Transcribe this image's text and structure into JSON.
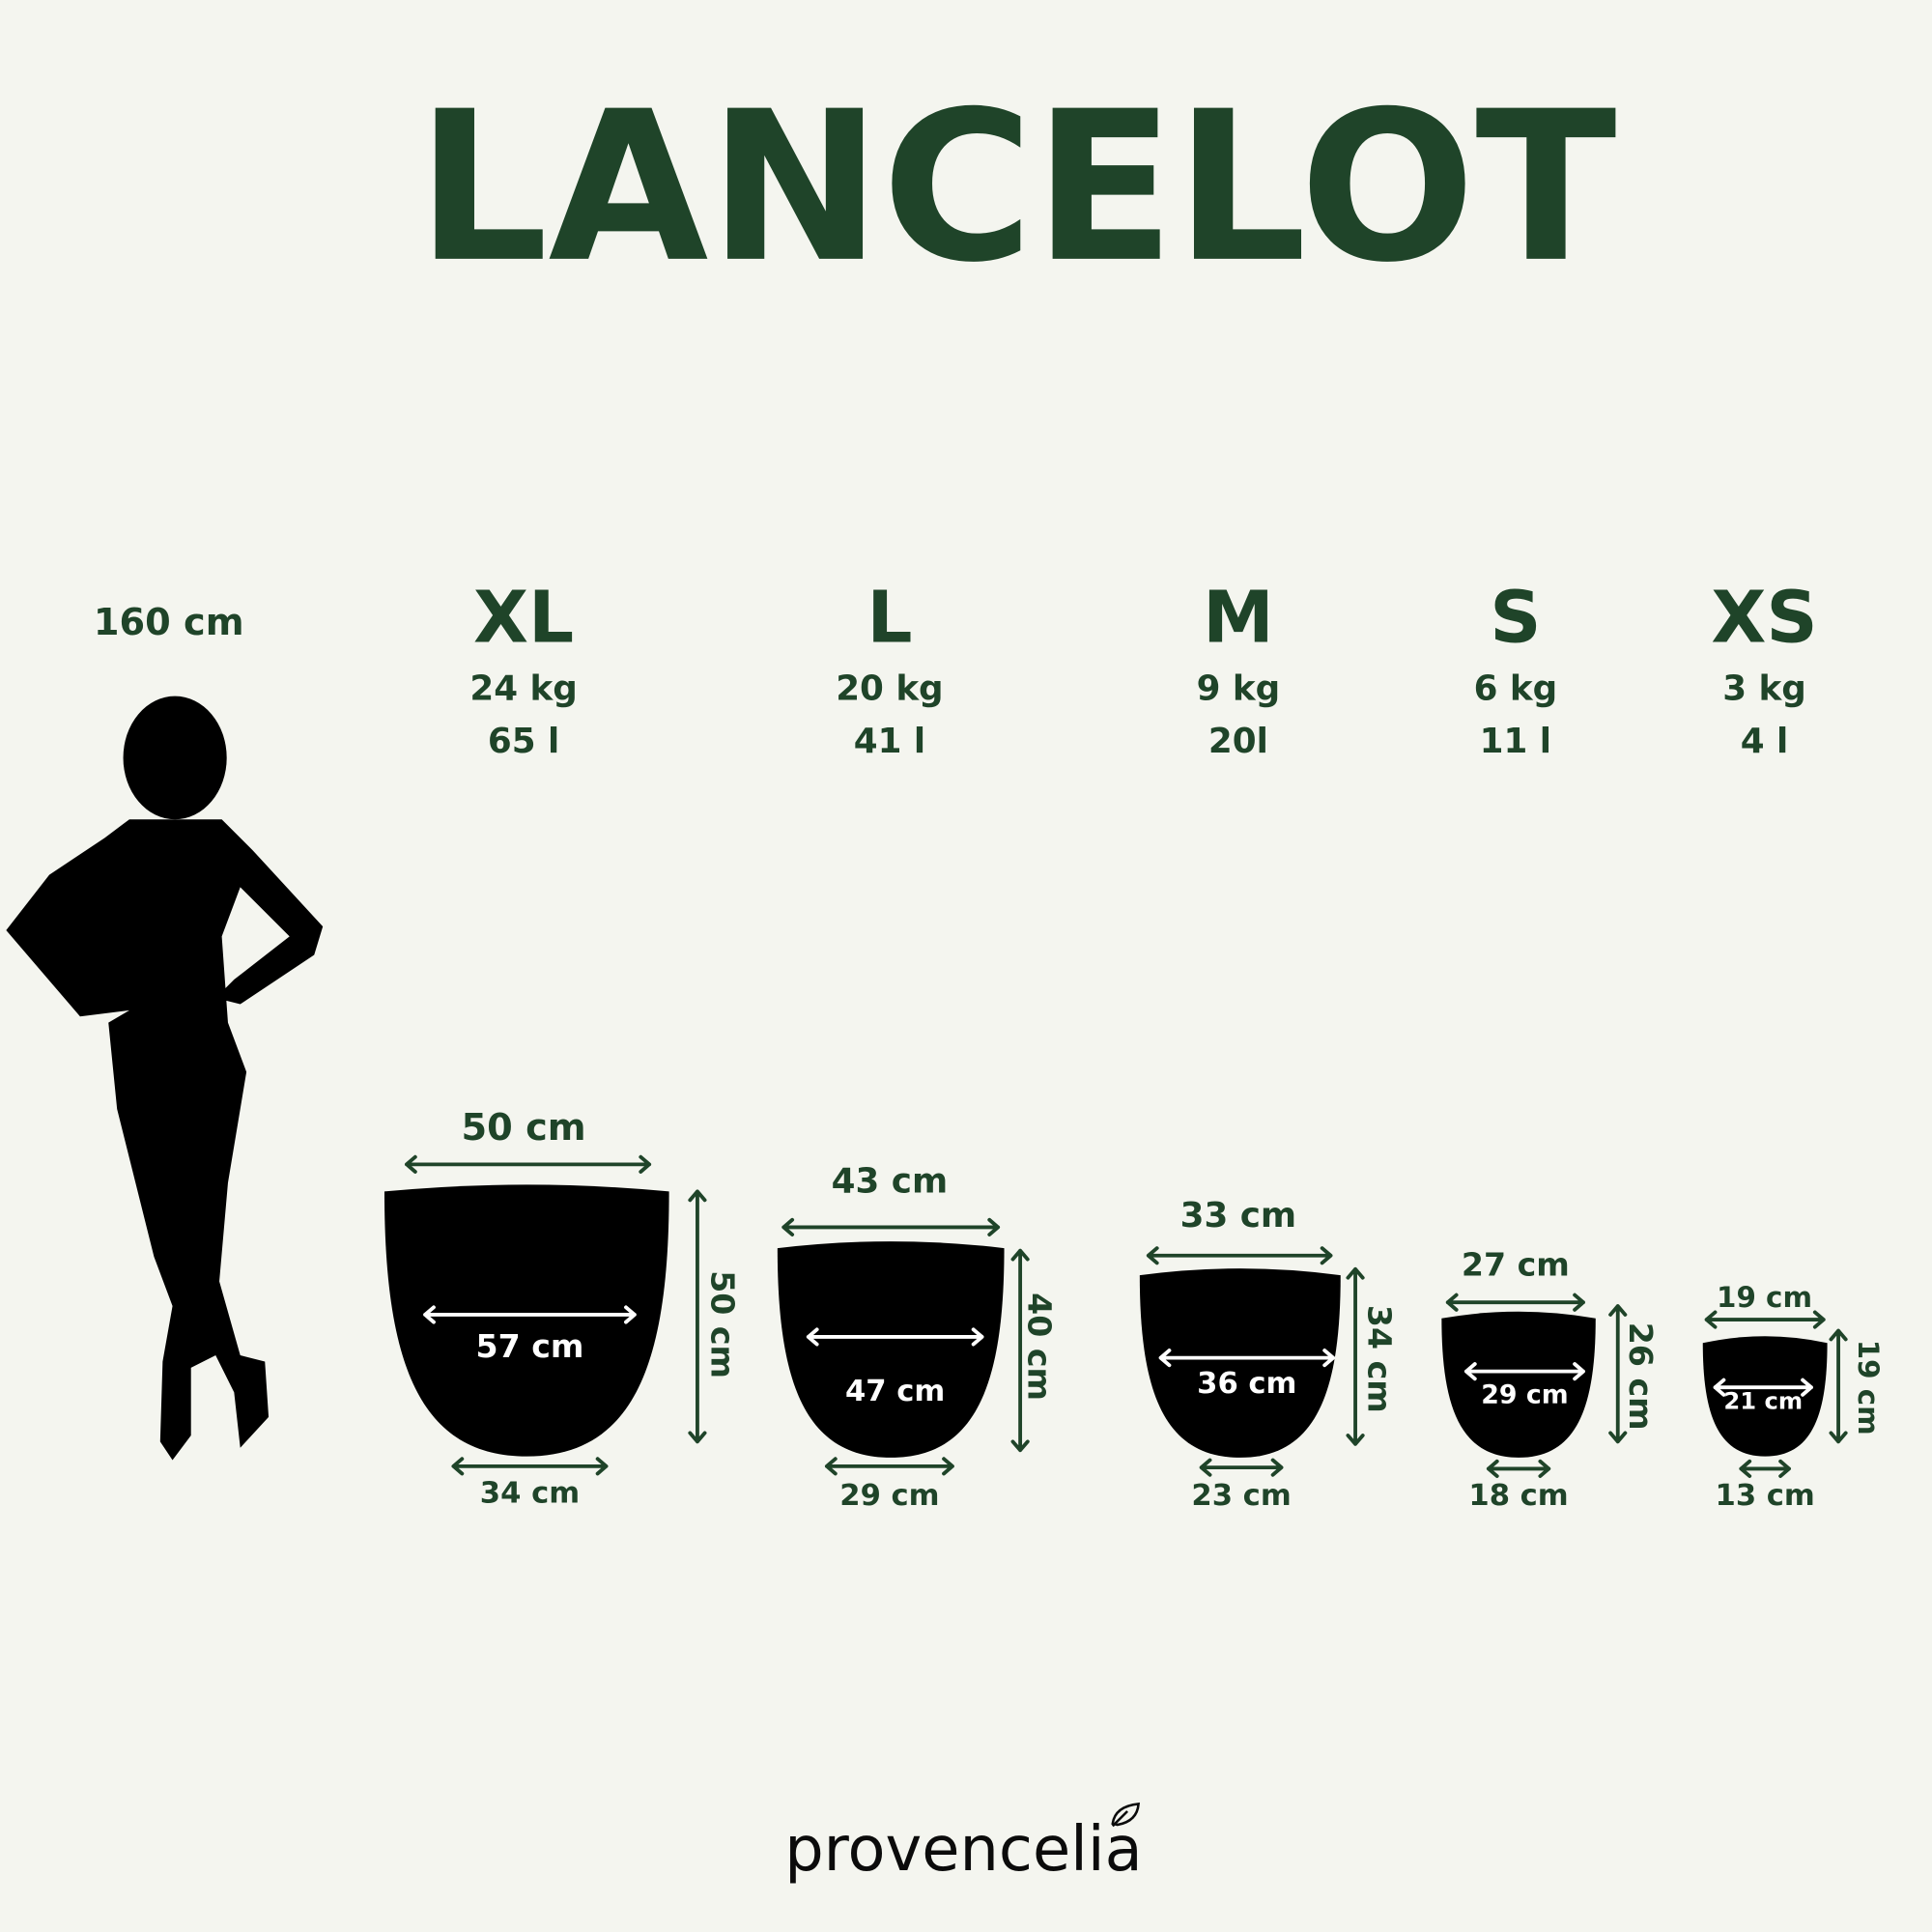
{
  "title": "LANCELOT",
  "reference": {
    "height_label": "160 cm",
    "icon": "woman-silhouette"
  },
  "colors": {
    "background": "#f4f5ef",
    "accent": "#1f4429",
    "pot": "#000000",
    "inner_text": "#ffffff"
  },
  "sizes": [
    {
      "label": "XL",
      "weight": "24 kg",
      "volume": "65 l",
      "top_width": "50 cm",
      "inner_width": "57 cm",
      "bottom_width": "34 cm",
      "height": "50 cm"
    },
    {
      "label": "L",
      "weight": "20 kg",
      "volume": "41 l",
      "top_width": "43 cm",
      "inner_width": "47 cm",
      "bottom_width": "29 cm",
      "height": "40 cm"
    },
    {
      "label": "M",
      "weight": "9 kg",
      "volume": "20l",
      "top_width": "33 cm",
      "inner_width": "36 cm",
      "bottom_width": "23 cm",
      "height": "34 cm"
    },
    {
      "label": "S",
      "weight": "6 kg",
      "volume": "11 l",
      "top_width": "27 cm",
      "inner_width": "29 cm",
      "bottom_width": "18 cm",
      "height": "26 cm"
    },
    {
      "label": "XS",
      "weight": "3 kg",
      "volume": "4 l",
      "top_width": "19 cm",
      "inner_width": "21 cm",
      "bottom_width": "13 cm",
      "height": "19 cm"
    }
  ],
  "brand": {
    "logo_text": "provencelia",
    "icon": "leaf"
  }
}
